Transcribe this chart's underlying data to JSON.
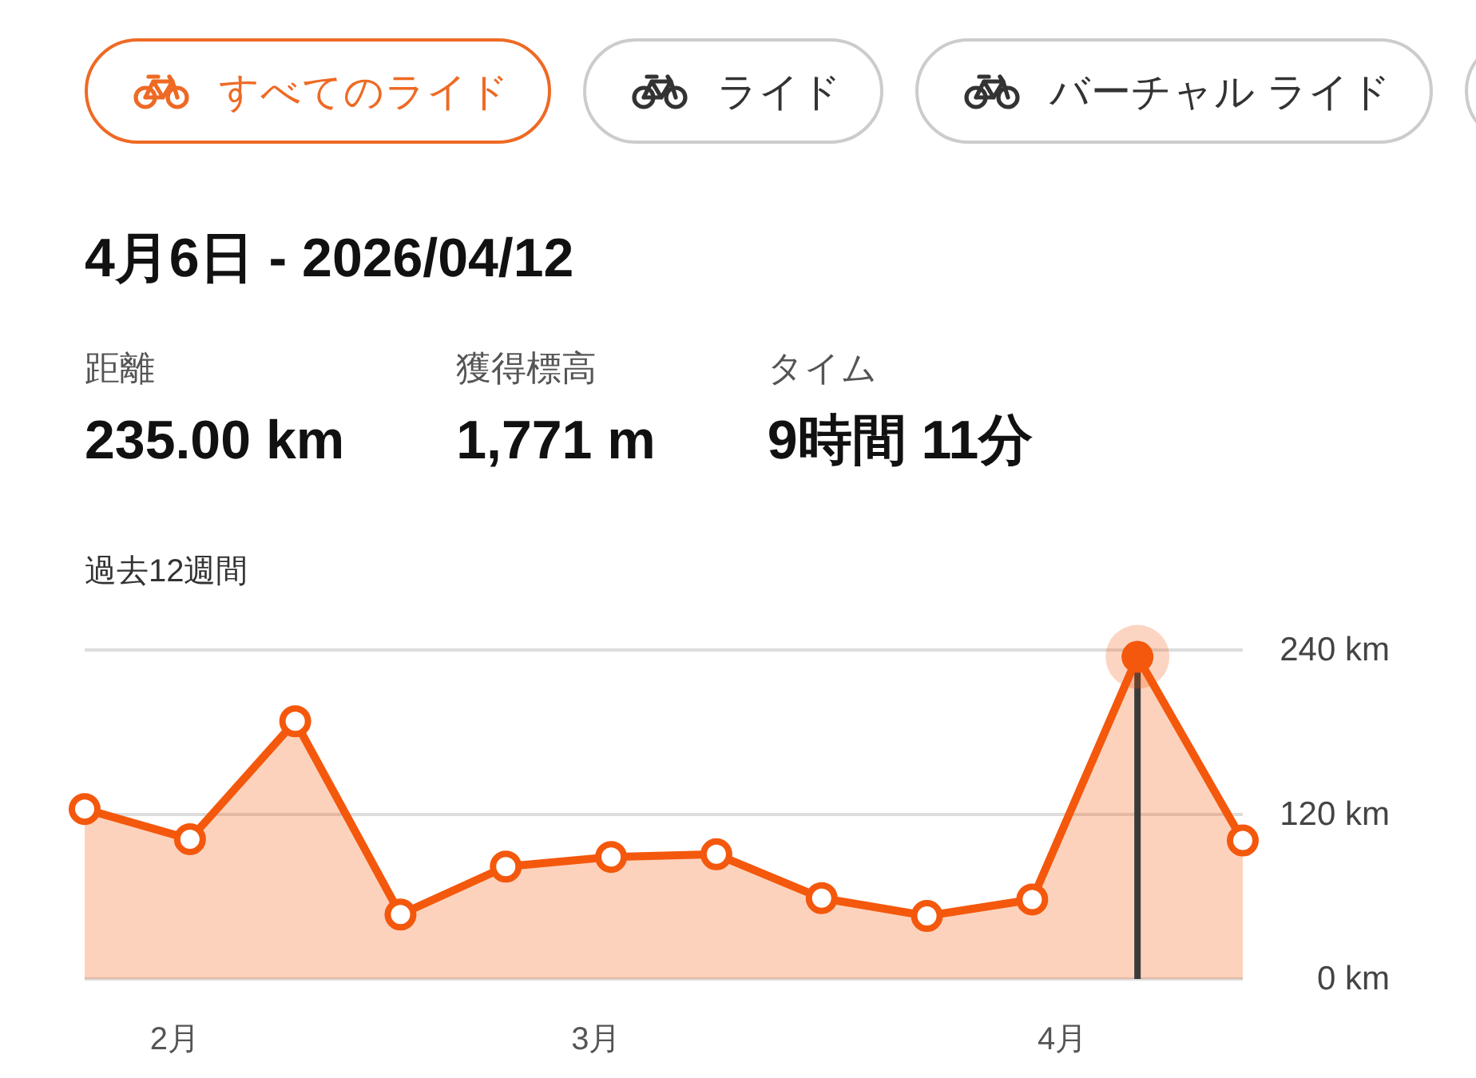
{
  "chart_data": [
    {
      "type": "other",
      "categories": [
        "すべてのライド",
        "ライド",
        "バーチャル ライド",
        null
      ],
      "colors": [
        "#ee6a24",
        "#cccccc",
        "#cccccc",
        "#cccccc"
      ]
    },
    {
      "type": "other",
      "title": "4月6日 - 2026/04/12",
      "annotations": [
        "距離",
        "235.00 km",
        "獲得標高",
        "1,771 m",
        "タイム",
        "9時間 11分"
      ]
    },
    {
      "type": "area",
      "title": "過去12週間",
      "x": [
        "2026-01-26",
        "2026-02-02",
        "2026-02-09",
        "2026-02-16",
        "2026-02-23",
        "2026-03-02",
        "2026-03-09",
        "2026-03-16",
        "2026-03-23",
        "2026-03-30",
        "2026-04-06",
        "2026-04-13"
      ],
      "values": [
        124,
        102,
        188,
        47,
        82,
        89,
        91,
        59,
        46,
        58,
        235,
        101
      ],
      "color": "#f4580c",
      "xlim": [
        "2026-01-26",
        "2026-04-13"
      ],
      "ylim": [
        0,
        240
      ],
      "xticks": [
        {
          "value": "2026-02-01",
          "label": "2月"
        },
        {
          "value": "2026-03-01",
          "label": "3月"
        },
        {
          "value": "2026-04-01",
          "label": "4月"
        }
      ],
      "yticks": [
        {
          "value": 0,
          "label": "0 km"
        },
        {
          "value": 120,
          "label": "120 km"
        },
        {
          "value": 240,
          "label": "240 km"
        }
      ],
      "grid": "y",
      "marker": "circle",
      "ref_lines": [
        {
          "axis": "x",
          "value": "2026-04-06",
          "color": "#3a3a3a"
        }
      ]
    }
  ]
}
